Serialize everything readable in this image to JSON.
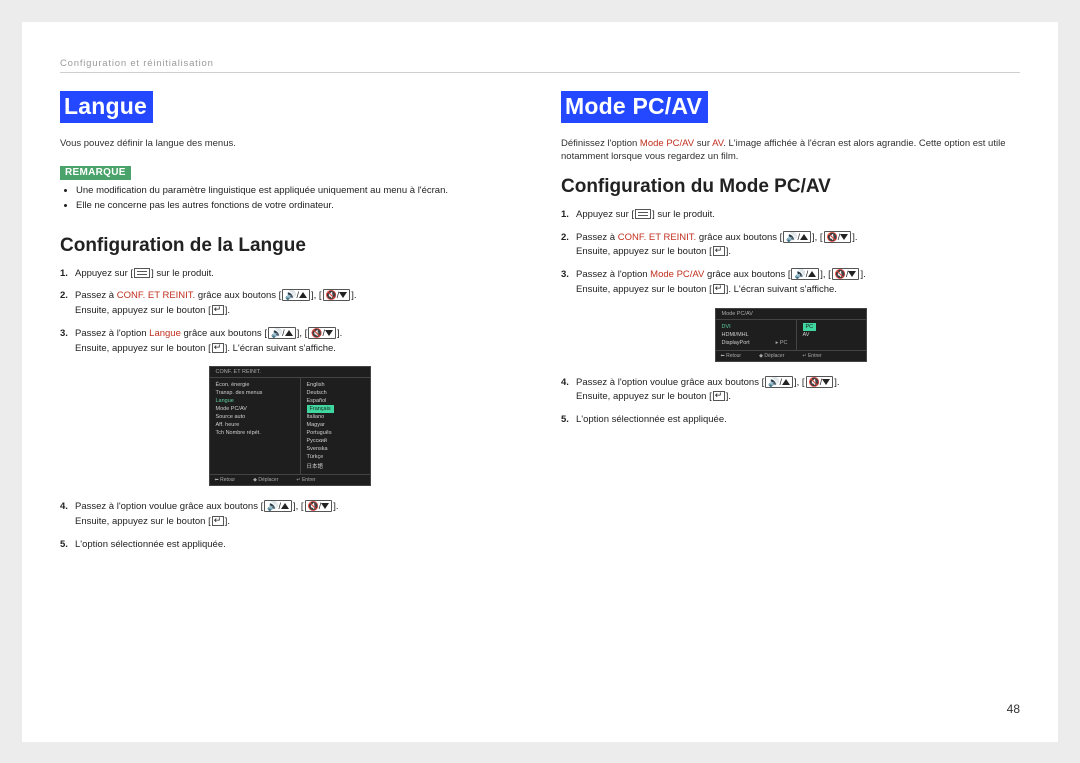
{
  "breadcrumb": "Configuration et réinitialisation",
  "page_number": "48",
  "highlight_color": "#c03020",
  "h1_bg": "#2448ff",
  "remark_bg": "#4aa36a",
  "left": {
    "h1": "Langue",
    "intro": "Vous pouvez définir la langue des menus.",
    "remark_label": "REMARQUE",
    "remarks": [
      "Une modification du paramètre linguistique est appliquée uniquement au menu à l'écran.",
      "Elle ne concerne pas les autres fonctions de votre ordinateur."
    ],
    "h2": "Configuration de la Langue",
    "steps": {
      "s1a": "Appuyez sur [",
      "s1b": "] sur le produit.",
      "s2a": "Passez à ",
      "s2hl": "CONF. ET REINIT.",
      "s2b": " grâce aux boutons ",
      "s2c": "Ensuite, appuyez sur le bouton [",
      "s2d": "].",
      "s3a": "Passez à l'option ",
      "s3hl": "Langue",
      "s3b": " grâce aux boutons ",
      "s3c": "Ensuite, appuyez sur le bouton [",
      "s3d": "]. L'écran suivant s'affiche.",
      "s4a": "Passez à l'option voulue grâce aux boutons ",
      "s4b": "Ensuite, appuyez sur le bouton [",
      "s4c": "].",
      "s5": "L'option sélectionnée est appliquée."
    },
    "osd": {
      "title": "CONF. ET REINIT.",
      "left_items": [
        "Écon. énergie",
        "Transp. des menus",
        "Langue",
        "Mode PC/AV",
        "Source auto",
        "Aff. heure",
        "Tch Nombre répét."
      ],
      "left_selected_index": 2,
      "right_items": [
        "English",
        "Deutsch",
        "Español",
        "Français",
        "Italiano",
        "Magyar",
        "Português",
        "Русский",
        "Svenska",
        "Türkçe",
        "日本語"
      ],
      "right_selected_index": 3,
      "foot": [
        "Retour",
        "Déplacer",
        "Entrer"
      ]
    }
  },
  "right": {
    "h1": "Mode PC/AV",
    "intro_a": "Définissez l'option ",
    "intro_hl1": "Mode PC/AV",
    "intro_b": " sur ",
    "intro_hl2": "AV",
    "intro_c": ". L'image affichée à l'écran est alors agrandie. Cette option est utile notamment lorsque vous regardez un film.",
    "h2": "Configuration du Mode PC/AV",
    "steps": {
      "s1a": "Appuyez sur [",
      "s1b": "] sur le produit.",
      "s2a": "Passez à ",
      "s2hl": "CONF. ET REINIT.",
      "s2b": " grâce aux boutons ",
      "s2c": "Ensuite, appuyez sur le bouton [",
      "s2d": "].",
      "s3a": "Passez à l'option ",
      "s3hl": "Mode PC/AV",
      "s3b": " grâce aux boutons ",
      "s3c": "Ensuite, appuyez sur le bouton [",
      "s3d": "]. L'écran suivant s'affiche.",
      "s4a": "Passez à l'option voulue grâce aux boutons ",
      "s4b": "Ensuite, appuyez sur le bouton [",
      "s4c": "].",
      "s5": "L'option sélectionnée est appliquée."
    },
    "osd": {
      "title": "Mode PC/AV",
      "left_items": [
        "DVI",
        "HDMI/MHL",
        "DisplayPort"
      ],
      "left_values": [
        "",
        "",
        "PC"
      ],
      "right_items": [
        "PC",
        "AV"
      ],
      "right_selected_index": 0,
      "foot": [
        "Retour",
        "Déplacer",
        "Entrer"
      ]
    }
  }
}
